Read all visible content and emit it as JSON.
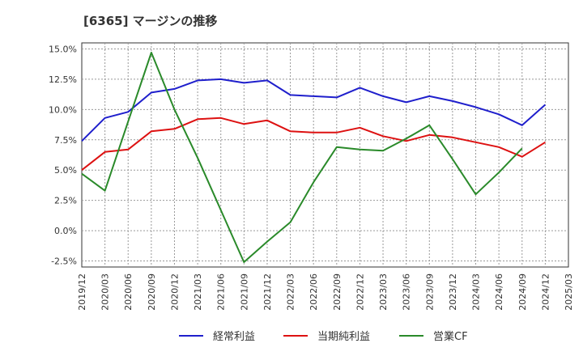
{
  "chart_data": {
    "type": "line",
    "title": "[6365]  マージンの推移",
    "xlabel": "",
    "ylabel": "",
    "x": [
      "2019/12",
      "2020/03",
      "2020/06",
      "2020/09",
      "2020/12",
      "2021/03",
      "2021/06",
      "2021/09",
      "2021/12",
      "2022/03",
      "2022/06",
      "2022/09",
      "2022/12",
      "2023/03",
      "2023/06",
      "2023/09",
      "2023/12",
      "2024/03",
      "2024/06",
      "2024/09",
      "2024/12",
      "2025/03"
    ],
    "y_ticks": [
      "15.0%",
      "12.5%",
      "10.0%",
      "7.5%",
      "5.0%",
      "2.5%",
      "0.0%",
      "-2.5%"
    ],
    "ylim": [
      -3.0,
      15.5
    ],
    "grid": true,
    "legend_position": "bottom",
    "series": [
      {
        "name": "経常利益",
        "color": "#1f1fcc",
        "values": [
          7.4,
          9.3,
          9.8,
          11.4,
          11.7,
          12.4,
          12.5,
          12.2,
          12.4,
          11.2,
          11.1,
          11.0,
          11.8,
          11.1,
          10.6,
          11.1,
          10.7,
          10.2,
          9.6,
          8.7,
          10.4,
          null
        ]
      },
      {
        "name": "当期純利益",
        "color": "#dd1111",
        "values": [
          5.0,
          6.5,
          6.7,
          8.2,
          8.4,
          9.2,
          9.3,
          8.8,
          9.1,
          8.2,
          8.1,
          8.1,
          8.5,
          7.8,
          7.4,
          7.9,
          7.7,
          7.3,
          6.9,
          6.1,
          7.3,
          null
        ]
      },
      {
        "name": "営業CF",
        "color": "#2a8a2a",
        "values": [
          4.7,
          3.3,
          9.0,
          14.7,
          10.0,
          6.0,
          1.7,
          -2.6,
          -0.9,
          0.7,
          4.0,
          6.9,
          6.7,
          6.6,
          7.6,
          8.7,
          5.9,
          3.0,
          4.8,
          6.8,
          null,
          null
        ]
      }
    ]
  }
}
